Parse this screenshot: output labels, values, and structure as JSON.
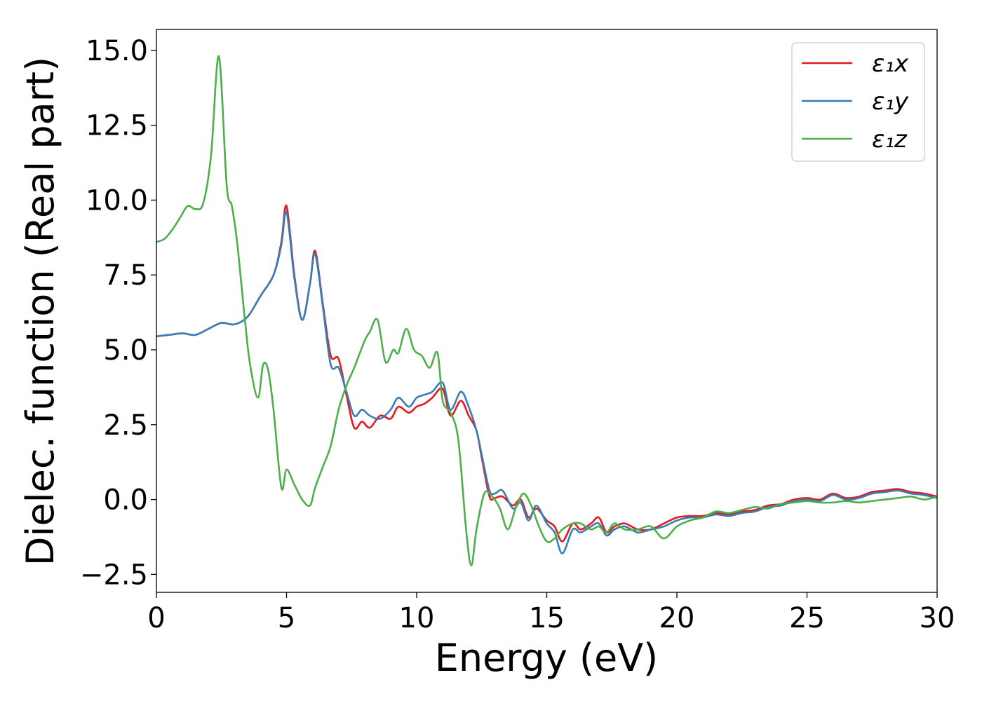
{
  "chart_data": {
    "type": "line",
    "xlabel": "Energy (eV)",
    "ylabel": "Dielec. function (Real part)",
    "xlim": [
      0,
      30
    ],
    "ylim": [
      -3.1,
      15.7
    ],
    "xticks": [
      0,
      5,
      10,
      15,
      20,
      25,
      30
    ],
    "xtick_labels": [
      "0",
      "5",
      "10",
      "15",
      "20",
      "25",
      "30"
    ],
    "yticks": [
      -2.5,
      0.0,
      2.5,
      5.0,
      7.5,
      10.0,
      12.5,
      15.0
    ],
    "ytick_labels": [
      "−2.5",
      "0.0",
      "2.5",
      "5.0",
      "7.5",
      "10.0",
      "12.5",
      "15.0"
    ],
    "grid": false,
    "legend": "top-right",
    "series": [
      {
        "name": "ε₁x",
        "color": "#e41a1c",
        "x": [
          0,
          0.5,
          1,
          1.5,
          2,
          2.5,
          3,
          3.5,
          4,
          4.5,
          4.8,
          5,
          5.3,
          5.6,
          5.9,
          6.1,
          6.4,
          6.7,
          7,
          7.3,
          7.6,
          7.9,
          8.2,
          8.6,
          9,
          9.3,
          9.7,
          10,
          10.3,
          10.6,
          11,
          11.3,
          11.7,
          12,
          12.3,
          12.5,
          12.8,
          13,
          13.3,
          13.7,
          14,
          14.3,
          14.6,
          15,
          15.3,
          15.6,
          16,
          16.3,
          16.7,
          17,
          17.3,
          17.6,
          18,
          18.5,
          19,
          19.5,
          20,
          20.5,
          21,
          21.5,
          22,
          22.5,
          23,
          23.5,
          24,
          24.5,
          25,
          25.5,
          26,
          26.5,
          27,
          27.5,
          28,
          28.5,
          29,
          29.5,
          30
        ],
        "values": [
          5.45,
          5.5,
          5.55,
          5.5,
          5.7,
          5.9,
          5.85,
          6.1,
          6.8,
          7.5,
          8.6,
          9.8,
          7.5,
          6.0,
          7.2,
          8.3,
          6.5,
          4.8,
          4.7,
          3.5,
          2.4,
          2.6,
          2.4,
          2.8,
          2.7,
          3.1,
          2.9,
          3.1,
          3.2,
          3.4,
          3.7,
          2.8,
          3.3,
          2.8,
          2.3,
          1.4,
          0.1,
          0.05,
          0.1,
          -0.2,
          0.0,
          -0.6,
          -0.3,
          -0.7,
          -0.9,
          -1.4,
          -0.8,
          -1.0,
          -0.8,
          -0.6,
          -1.1,
          -0.9,
          -0.8,
          -1.0,
          -1.0,
          -0.8,
          -0.6,
          -0.55,
          -0.55,
          -0.45,
          -0.5,
          -0.4,
          -0.35,
          -0.2,
          -0.15,
          0.0,
          0.05,
          0.0,
          0.2,
          0.05,
          0.1,
          0.25,
          0.3,
          0.35,
          0.25,
          0.2,
          0.1
        ]
      },
      {
        "name": "ε₁y",
        "color": "#377eb8",
        "x": [
          0,
          0.5,
          1,
          1.5,
          2,
          2.5,
          3,
          3.5,
          4,
          4.5,
          4.8,
          5,
          5.3,
          5.6,
          5.9,
          6.1,
          6.4,
          6.7,
          7,
          7.3,
          7.6,
          7.9,
          8.2,
          8.6,
          9,
          9.3,
          9.7,
          10,
          10.3,
          10.6,
          11,
          11.3,
          11.7,
          12,
          12.3,
          12.5,
          12.8,
          13,
          13.3,
          13.7,
          14,
          14.3,
          14.6,
          15,
          15.3,
          15.6,
          16,
          16.3,
          16.7,
          17,
          17.3,
          17.6,
          18,
          18.5,
          19,
          19.5,
          20,
          20.5,
          21,
          21.5,
          22,
          22.5,
          23,
          23.5,
          24,
          24.5,
          25,
          25.5,
          26,
          26.5,
          27,
          27.5,
          28,
          28.5,
          29,
          29.5,
          30
        ],
        "values": [
          5.45,
          5.5,
          5.55,
          5.5,
          5.7,
          5.9,
          5.85,
          6.1,
          6.8,
          7.5,
          8.5,
          9.6,
          7.4,
          6.0,
          7.2,
          8.2,
          6.4,
          4.5,
          4.4,
          3.6,
          2.8,
          3.0,
          2.8,
          2.7,
          3.0,
          3.4,
          3.1,
          3.4,
          3.5,
          3.6,
          3.9,
          3.0,
          3.6,
          3.1,
          2.3,
          1.5,
          0.3,
          0.2,
          0.3,
          -0.3,
          -0.1,
          -0.7,
          -0.2,
          -0.8,
          -1.1,
          -1.8,
          -1.0,
          -1.1,
          -0.9,
          -0.8,
          -1.2,
          -1.0,
          -0.9,
          -1.1,
          -1.0,
          -0.9,
          -0.7,
          -0.6,
          -0.6,
          -0.5,
          -0.55,
          -0.45,
          -0.4,
          -0.25,
          -0.2,
          -0.05,
          0.0,
          -0.05,
          0.15,
          0.0,
          0.05,
          0.2,
          0.25,
          0.3,
          0.2,
          0.15,
          0.05
        ]
      },
      {
        "name": "ε₁z",
        "color": "#4daf4a",
        "x": [
          0,
          0.3,
          0.6,
          0.9,
          1.2,
          1.5,
          1.8,
          2.1,
          2.4,
          2.7,
          2.9,
          3.1,
          3.4,
          3.6,
          3.9,
          4.1,
          4.3,
          4.5,
          4.8,
          5.0,
          5.3,
          5.6,
          5.9,
          6.1,
          6.4,
          6.7,
          7,
          7.3,
          7.6,
          8,
          8.2,
          8.5,
          8.8,
          9.1,
          9.3,
          9.6,
          9.9,
          10.2,
          10.5,
          10.8,
          11,
          11.3,
          11.6,
          11.9,
          12.1,
          12.3,
          12.6,
          12.9,
          13.2,
          13.5,
          13.8,
          14.1,
          14.4,
          14.7,
          15,
          15.3,
          15.6,
          16,
          16.3,
          16.7,
          17,
          17.3,
          17.6,
          18,
          18.5,
          19,
          19.5,
          20,
          20.5,
          21,
          21.5,
          22,
          22.5,
          23,
          23.5,
          24,
          24.5,
          25,
          25.5,
          26,
          26.5,
          27,
          27.5,
          28,
          28.5,
          29,
          29.5,
          30
        ],
        "values": [
          8.6,
          8.7,
          9.0,
          9.4,
          9.8,
          9.7,
          9.9,
          11.5,
          14.8,
          10.5,
          9.8,
          8.6,
          6.0,
          4.5,
          3.4,
          4.5,
          4.3,
          3.0,
          0.4,
          1.0,
          0.5,
          0.0,
          -0.2,
          0.4,
          1.1,
          1.8,
          3.0,
          3.8,
          4.4,
          5.3,
          5.6,
          6.0,
          4.6,
          5.0,
          4.9,
          5.7,
          5.0,
          4.8,
          4.4,
          4.9,
          3.3,
          2.9,
          2.0,
          -1.0,
          -2.2,
          -1.0,
          0.2,
          0.1,
          -0.3,
          -1.0,
          -0.3,
          0.2,
          -0.2,
          -0.9,
          -1.4,
          -1.3,
          -1.0,
          -0.8,
          -0.8,
          -1.0,
          -0.9,
          -1.1,
          -0.8,
          -1.0,
          -1.0,
          -0.9,
          -1.3,
          -0.9,
          -0.7,
          -0.6,
          -0.4,
          -0.45,
          -0.35,
          -0.25,
          -0.3,
          -0.15,
          -0.1,
          -0.05,
          -0.1,
          -0.1,
          -0.05,
          -0.1,
          -0.05,
          0.0,
          0.05,
          0.1,
          0.0,
          0.1
        ]
      }
    ]
  }
}
